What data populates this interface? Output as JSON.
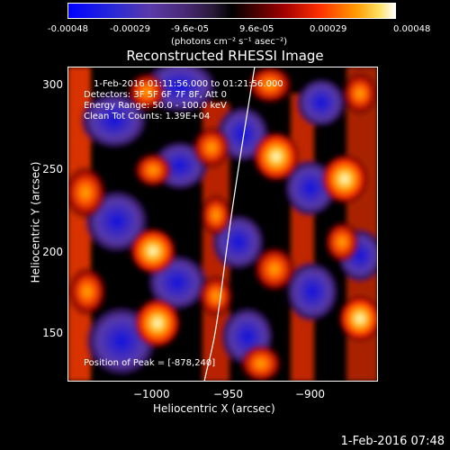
{
  "colorbar": {
    "ticks": [
      "-0.00048",
      "-0.00029",
      "-9.6e-05",
      "9.6e-05",
      "0.00029",
      "0.00048"
    ],
    "units": "(photons cm⁻² s⁻¹ asec⁻²)"
  },
  "title": "Reconstructed RHESSI Image",
  "info": {
    "time_range": "1-Feb-2016 01:11:56.000 to 01:21:56.000",
    "detectors": "Detectors: 3F 5F 6F 7F 8F, Att 0",
    "energy": "Energy Range: 50.0 - 100.0 keV",
    "clean": "Clean     Tot Counts: 1.39E+04",
    "peak": "Position of Peak = [-878,240]"
  },
  "axes": {
    "xlabel": "Heliocentric X (arcsec)",
    "ylabel": "Heliocentric Y (arcsec)",
    "xticks": [
      "−1000",
      "−950",
      "−900"
    ],
    "yticks": [
      "300",
      "250",
      "200",
      "150"
    ]
  },
  "footer": {
    "date": "1-Feb-2016 07:48"
  },
  "colors": {
    "background": "#000000",
    "positive": "#ff3000",
    "peak": "#ffffff",
    "negative": "#3a1a8a"
  }
}
